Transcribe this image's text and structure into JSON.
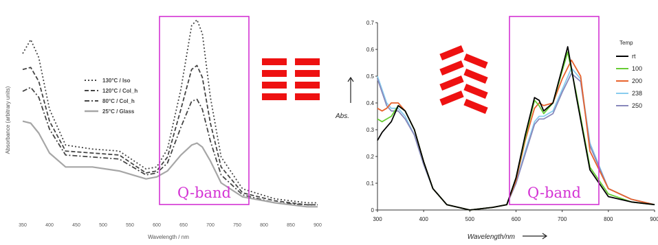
{
  "chart_data": [
    {
      "type": "line",
      "xlabel": "Wavelength / nm",
      "ylabel": "Absorbance (arbitrary units)",
      "xlim": [
        350,
        900
      ],
      "xticks": [
        "350",
        "400",
        "450",
        "500",
        "550",
        "600",
        "650",
        "700",
        "750",
        "800",
        "850",
        "900"
      ],
      "annotation": "Q-band",
      "band": [
        600,
        720
      ],
      "legend_position": "left-middle",
      "series": [
        {
          "name": "130°C / Iso",
          "style": "dotted",
          "color": "#444444",
          "x": [
            350,
            365,
            380,
            400,
            430,
            480,
            530,
            580,
            600,
            620,
            645,
            665,
            675,
            685,
            700,
            720,
            760,
            820,
            880,
            900
          ],
          "y": [
            0.8,
            0.87,
            0.78,
            0.52,
            0.34,
            0.32,
            0.31,
            0.22,
            0.23,
            0.32,
            0.62,
            0.94,
            0.97,
            0.9,
            0.58,
            0.28,
            0.12,
            0.07,
            0.05,
            0.05
          ]
        },
        {
          "name": "120°C / Col_h",
          "style": "dashed",
          "color": "#444444",
          "x": [
            350,
            365,
            380,
            400,
            430,
            480,
            530,
            580,
            600,
            620,
            645,
            665,
            675,
            685,
            700,
            720,
            760,
            820,
            880,
            900
          ],
          "y": [
            0.72,
            0.73,
            0.66,
            0.46,
            0.31,
            0.3,
            0.29,
            0.2,
            0.21,
            0.28,
            0.52,
            0.72,
            0.74,
            0.68,
            0.45,
            0.23,
            0.1,
            0.06,
            0.04,
            0.04
          ]
        },
        {
          "name": "80°C / Col_h",
          "style": "dashdot",
          "color": "#444444",
          "x": [
            350,
            365,
            380,
            400,
            430,
            480,
            530,
            580,
            600,
            620,
            645,
            665,
            675,
            685,
            700,
            720,
            760,
            820,
            880,
            900
          ],
          "y": [
            0.61,
            0.63,
            0.58,
            0.42,
            0.29,
            0.28,
            0.27,
            0.19,
            0.2,
            0.25,
            0.43,
            0.56,
            0.57,
            0.52,
            0.36,
            0.19,
            0.09,
            0.05,
            0.04,
            0.04
          ]
        },
        {
          "name": "25°C / Glass",
          "style": "solid",
          "color": "#a6a6a6",
          "x": [
            350,
            365,
            380,
            400,
            430,
            480,
            530,
            580,
            600,
            620,
            645,
            665,
            675,
            685,
            700,
            720,
            760,
            820,
            880,
            900
          ],
          "y": [
            0.46,
            0.45,
            0.4,
            0.3,
            0.23,
            0.23,
            0.21,
            0.17,
            0.18,
            0.21,
            0.29,
            0.34,
            0.35,
            0.33,
            0.26,
            0.15,
            0.08,
            0.05,
            0.03,
            0.03
          ]
        }
      ]
    },
    {
      "type": "line",
      "xlabel": "Wavelength/nm",
      "ylabel": "Abs.",
      "xlim": [
        300,
        900
      ],
      "ylim": [
        0,
        0.7
      ],
      "xticks": [
        "300",
        "400",
        "500",
        "600",
        "700",
        "800",
        "900"
      ],
      "yticks": [
        "0",
        "0.1",
        "0.2",
        "0.3",
        "0.4",
        "0.5",
        "0.6",
        "0.7"
      ],
      "legend_title": "Temp",
      "legend_position": "right",
      "annotation": "Q-band",
      "band": [
        583,
        782
      ],
      "series": [
        {
          "name": "rt",
          "color": "#000000",
          "x": [
            300,
            310,
            320,
            330,
            345,
            360,
            380,
            400,
            420,
            450,
            500,
            550,
            580,
            600,
            620,
            640,
            650,
            660,
            680,
            700,
            712,
            730,
            760,
            800,
            850,
            900
          ],
          "y": [
            0.26,
            0.29,
            0.31,
            0.33,
            0.39,
            0.37,
            0.3,
            0.18,
            0.08,
            0.02,
            0.0,
            0.01,
            0.02,
            0.12,
            0.28,
            0.42,
            0.41,
            0.37,
            0.4,
            0.53,
            0.61,
            0.43,
            0.15,
            0.05,
            0.03,
            0.02
          ]
        },
        {
          "name": "100",
          "color": "#66cc33",
          "x": [
            300,
            310,
            320,
            330,
            345,
            360,
            380,
            400,
            420,
            450,
            500,
            550,
            580,
            600,
            620,
            640,
            650,
            660,
            680,
            700,
            712,
            730,
            760,
            800,
            850,
            900
          ],
          "y": [
            0.34,
            0.33,
            0.34,
            0.35,
            0.39,
            0.37,
            0.3,
            0.18,
            0.08,
            0.02,
            0.0,
            0.01,
            0.02,
            0.12,
            0.27,
            0.41,
            0.39,
            0.36,
            0.4,
            0.52,
            0.59,
            0.44,
            0.16,
            0.06,
            0.03,
            0.02
          ]
        },
        {
          "name": "200",
          "color": "#e8622c",
          "x": [
            300,
            310,
            320,
            330,
            345,
            360,
            380,
            400,
            420,
            450,
            500,
            550,
            580,
            600,
            620,
            640,
            650,
            660,
            680,
            700,
            720,
            740,
            760,
            800,
            850,
            900
          ],
          "y": [
            0.38,
            0.37,
            0.38,
            0.4,
            0.4,
            0.37,
            0.3,
            0.18,
            0.08,
            0.02,
            0.0,
            0.01,
            0.02,
            0.11,
            0.26,
            0.38,
            0.4,
            0.39,
            0.4,
            0.49,
            0.56,
            0.5,
            0.22,
            0.08,
            0.04,
            0.02
          ]
        },
        {
          "name": "238",
          "color": "#88ccee",
          "x": [
            300,
            310,
            320,
            330,
            345,
            360,
            380,
            400,
            420,
            450,
            500,
            550,
            580,
            600,
            620,
            640,
            650,
            660,
            680,
            700,
            720,
            740,
            760,
            800,
            850,
            900
          ],
          "y": [
            0.5,
            0.45,
            0.4,
            0.38,
            0.38,
            0.35,
            0.28,
            0.17,
            0.08,
            0.02,
            0.0,
            0.01,
            0.02,
            0.1,
            0.22,
            0.33,
            0.35,
            0.35,
            0.37,
            0.45,
            0.53,
            0.49,
            0.25,
            0.08,
            0.04,
            0.02
          ]
        },
        {
          "name": "250",
          "color": "#8888bb",
          "x": [
            300,
            310,
            320,
            330,
            345,
            360,
            380,
            400,
            420,
            450,
            500,
            550,
            580,
            600,
            620,
            640,
            650,
            660,
            680,
            700,
            720,
            740,
            760,
            800,
            850,
            900
          ],
          "y": [
            0.49,
            0.44,
            0.39,
            0.37,
            0.37,
            0.34,
            0.28,
            0.17,
            0.08,
            0.02,
            0.0,
            0.01,
            0.02,
            0.1,
            0.21,
            0.32,
            0.34,
            0.34,
            0.36,
            0.44,
            0.51,
            0.48,
            0.24,
            0.08,
            0.04,
            0.02
          ]
        }
      ]
    }
  ],
  "colors": {
    "band_box": "#d433d4",
    "bars": "#ee1111"
  }
}
